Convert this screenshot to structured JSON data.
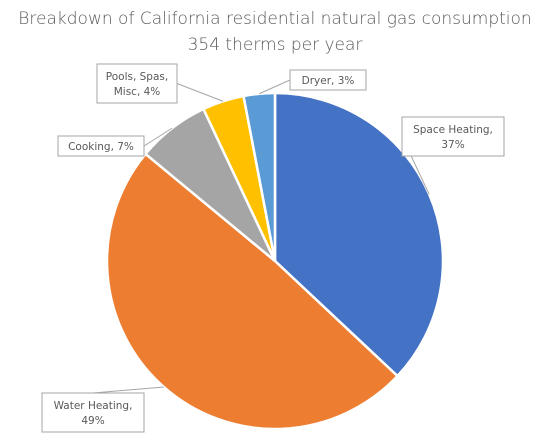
{
  "chart_data": {
    "type": "pie",
    "title": "Breakdown of California residential natural gas consumption",
    "subtitle": "354 therms per year",
    "start_category": "Space Heating",
    "direction": "clockwise",
    "slices": [
      {
        "label": "Space Heating",
        "value": 37,
        "color": "#4472c4",
        "label_lines": [
          "Space Heating,",
          "37%"
        ]
      },
      {
        "label": "Water Heating",
        "value": 49,
        "color": "#ed7d31",
        "label_lines": [
          "Water Heating,",
          "49%"
        ]
      },
      {
        "label": "Cooking",
        "value": 7,
        "color": "#a5a5a5",
        "label_lines": [
          "Cooking, 7%"
        ]
      },
      {
        "label": "Pools, Spas, Misc",
        "value": 4,
        "color": "#ffc000",
        "label_lines": [
          "Pools, Spas,",
          "Misc, 4%"
        ]
      },
      {
        "label": "Dryer",
        "value": 3,
        "color": "#5b9bd5",
        "label_lines": [
          "Dryer, 3%"
        ]
      }
    ],
    "legend": "none"
  }
}
